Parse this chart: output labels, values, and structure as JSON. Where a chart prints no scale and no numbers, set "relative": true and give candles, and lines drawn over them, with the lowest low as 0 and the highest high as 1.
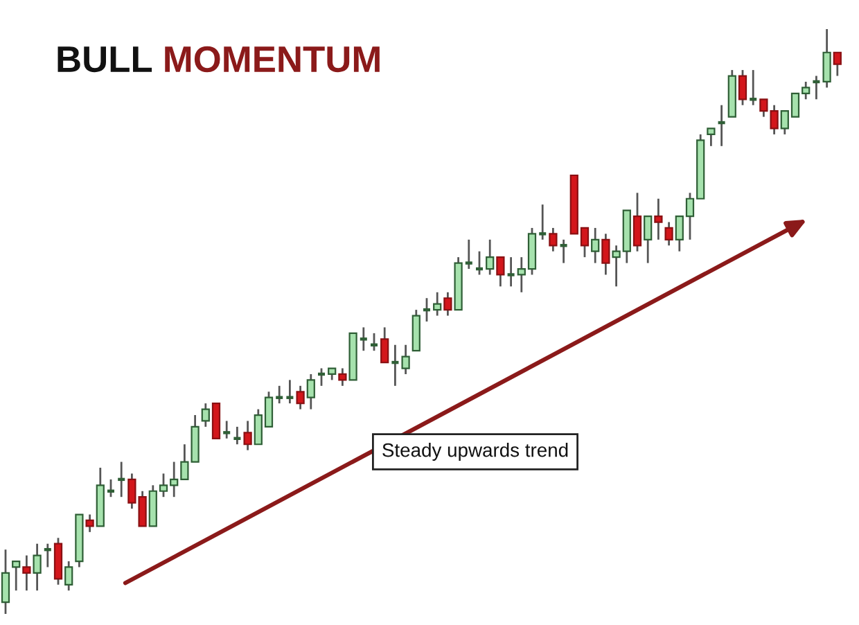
{
  "chart_data": {
    "type": "candlestick",
    "title": "BULL MOMENTUM",
    "relative": true,
    "annotations": [
      "Steady upwards trend"
    ],
    "categories": [
      null,
      null,
      null,
      null,
      null,
      null,
      null,
      null,
      null,
      null,
      null,
      null,
      null,
      null,
      null,
      null,
      null,
      null,
      null,
      null,
      null,
      null,
      null,
      null,
      null,
      null,
      null,
      null,
      null,
      null,
      null,
      null,
      null,
      null,
      null,
      null,
      null,
      null,
      null,
      null,
      null,
      null,
      null,
      null,
      null,
      null,
      null,
      null,
      null,
      null,
      null,
      null,
      null,
      null,
      null,
      null,
      null,
      null,
      null,
      null,
      null,
      null,
      null,
      null,
      null,
      null,
      null,
      null,
      null,
      null,
      null,
      null,
      null,
      null,
      null,
      null,
      null,
      null,
      null,
      null
    ],
    "ohlc": [
      [
        0.02,
        0.11,
        0,
        0.07
      ],
      [
        0.08,
        0.09,
        0.04,
        0.09
      ],
      [
        0.08,
        0.1,
        0.04,
        0.07
      ],
      [
        0.07,
        0.12,
        0.04,
        0.1
      ],
      [
        0.11,
        0.12,
        0.08,
        0.11
      ],
      [
        0.12,
        0.13,
        0.05,
        0.06
      ],
      [
        0.05,
        0.09,
        0.04,
        0.08
      ],
      [
        0.09,
        0.17,
        0.08,
        0.17
      ],
      [
        0.16,
        0.17,
        0.14,
        0.15
      ],
      [
        0.15,
        0.25,
        0.15,
        0.22
      ],
      [
        0.21,
        0.23,
        0.2,
        0.21
      ],
      [
        0.23,
        0.26,
        0.2,
        0.23
      ],
      [
        0.23,
        0.24,
        0.18,
        0.19
      ],
      [
        0.2,
        0.21,
        0.15,
        0.15
      ],
      [
        0.15,
        0.22,
        0.15,
        0.21
      ],
      [
        0.21,
        0.24,
        0.2,
        0.22
      ],
      [
        0.22,
        0.26,
        0.2,
        0.23
      ],
      [
        0.23,
        0.29,
        0.23,
        0.26
      ],
      [
        0.26,
        0.34,
        0.26,
        0.32
      ],
      [
        0.33,
        0.36,
        0.32,
        0.35
      ],
      [
        0.36,
        0.36,
        0.3,
        0.3
      ],
      [
        0.31,
        0.33,
        0.3,
        0.31
      ],
      [
        0.3,
        0.32,
        0.29,
        0.3
      ],
      [
        0.31,
        0.33,
        0.28,
        0.29
      ],
      [
        0.29,
        0.35,
        0.29,
        0.34
      ],
      [
        0.32,
        0.38,
        0.32,
        0.37
      ],
      [
        0.37,
        0.39,
        0.36,
        0.37
      ],
      [
        0.37,
        0.4,
        0.36,
        0.37
      ],
      [
        0.38,
        0.39,
        0.35,
        0.36
      ],
      [
        0.37,
        0.41,
        0.35,
        0.4
      ],
      [
        0.41,
        0.42,
        0.39,
        0.41
      ],
      [
        0.41,
        0.42,
        0.4,
        0.42
      ],
      [
        0.41,
        0.42,
        0.39,
        0.4
      ],
      [
        0.4,
        0.48,
        0.4,
        0.48
      ],
      [
        0.47,
        0.49,
        0.45,
        0.47
      ],
      [
        0.46,
        0.48,
        0.45,
        0.46
      ],
      [
        0.47,
        0.49,
        0.43,
        0.43
      ],
      [
        0.43,
        0.46,
        0.39,
        0.43
      ],
      [
        0.42,
        0.46,
        0.41,
        0.44
      ],
      [
        0.45,
        0.52,
        0.45,
        0.51
      ],
      [
        0.52,
        0.54,
        0.5,
        0.52
      ],
      [
        0.52,
        0.55,
        0.51,
        0.53
      ],
      [
        0.54,
        0.55,
        0.51,
        0.52
      ],
      [
        0.52,
        0.61,
        0.52,
        0.6
      ],
      [
        0.6,
        0.64,
        0.59,
        0.6
      ],
      [
        0.59,
        0.62,
        0.58,
        0.59
      ],
      [
        0.59,
        0.64,
        0.58,
        0.61
      ],
      [
        0.61,
        0.61,
        0.56,
        0.58
      ],
      [
        0.58,
        0.61,
        0.56,
        0.58
      ],
      [
        0.58,
        0.61,
        0.55,
        0.59
      ],
      [
        0.59,
        0.66,
        0.58,
        0.65
      ],
      [
        0.65,
        0.7,
        0.64,
        0.65
      ],
      [
        0.65,
        0.66,
        0.62,
        0.63
      ],
      [
        0.63,
        0.64,
        0.6,
        0.63
      ],
      [
        0.75,
        0.75,
        0.65,
        0.65
      ],
      [
        0.66,
        0.66,
        0.61,
        0.63
      ],
      [
        0.62,
        0.66,
        0.6,
        0.64
      ],
      [
        0.64,
        0.65,
        0.58,
        0.6
      ],
      [
        0.61,
        0.63,
        0.56,
        0.62
      ],
      [
        0.62,
        0.69,
        0.6,
        0.69
      ],
      [
        0.68,
        0.72,
        0.62,
        0.63
      ],
      [
        0.64,
        0.68,
        0.6,
        0.68
      ],
      [
        0.68,
        0.71,
        0.64,
        0.67
      ],
      [
        0.66,
        0.67,
        0.63,
        0.64
      ],
      [
        0.64,
        0.68,
        0.62,
        0.68
      ],
      [
        0.68,
        0.72,
        0.64,
        0.71
      ],
      [
        0.71,
        0.82,
        0.71,
        0.81
      ],
      [
        0.82,
        0.83,
        0.8,
        0.83
      ],
      [
        0.84,
        0.87,
        0.8,
        0.84
      ],
      [
        0.85,
        0.93,
        0.85,
        0.92
      ],
      [
        0.92,
        0.93,
        0.87,
        0.88
      ],
      [
        0.88,
        0.93,
        0.87,
        0.88
      ],
      [
        0.88,
        0.88,
        0.85,
        0.86
      ],
      [
        0.86,
        0.87,
        0.82,
        0.83
      ],
      [
        0.83,
        0.86,
        0.82,
        0.86
      ],
      [
        0.85,
        0.89,
        0.85,
        0.89
      ],
      [
        0.89,
        0.91,
        0.88,
        0.9
      ],
      [
        0.91,
        0.92,
        0.88,
        0.91
      ],
      [
        0.91,
        1,
        0.9,
        0.96
      ],
      [
        0.96,
        0.96,
        0.92,
        0.94
      ]
    ]
  }
}
